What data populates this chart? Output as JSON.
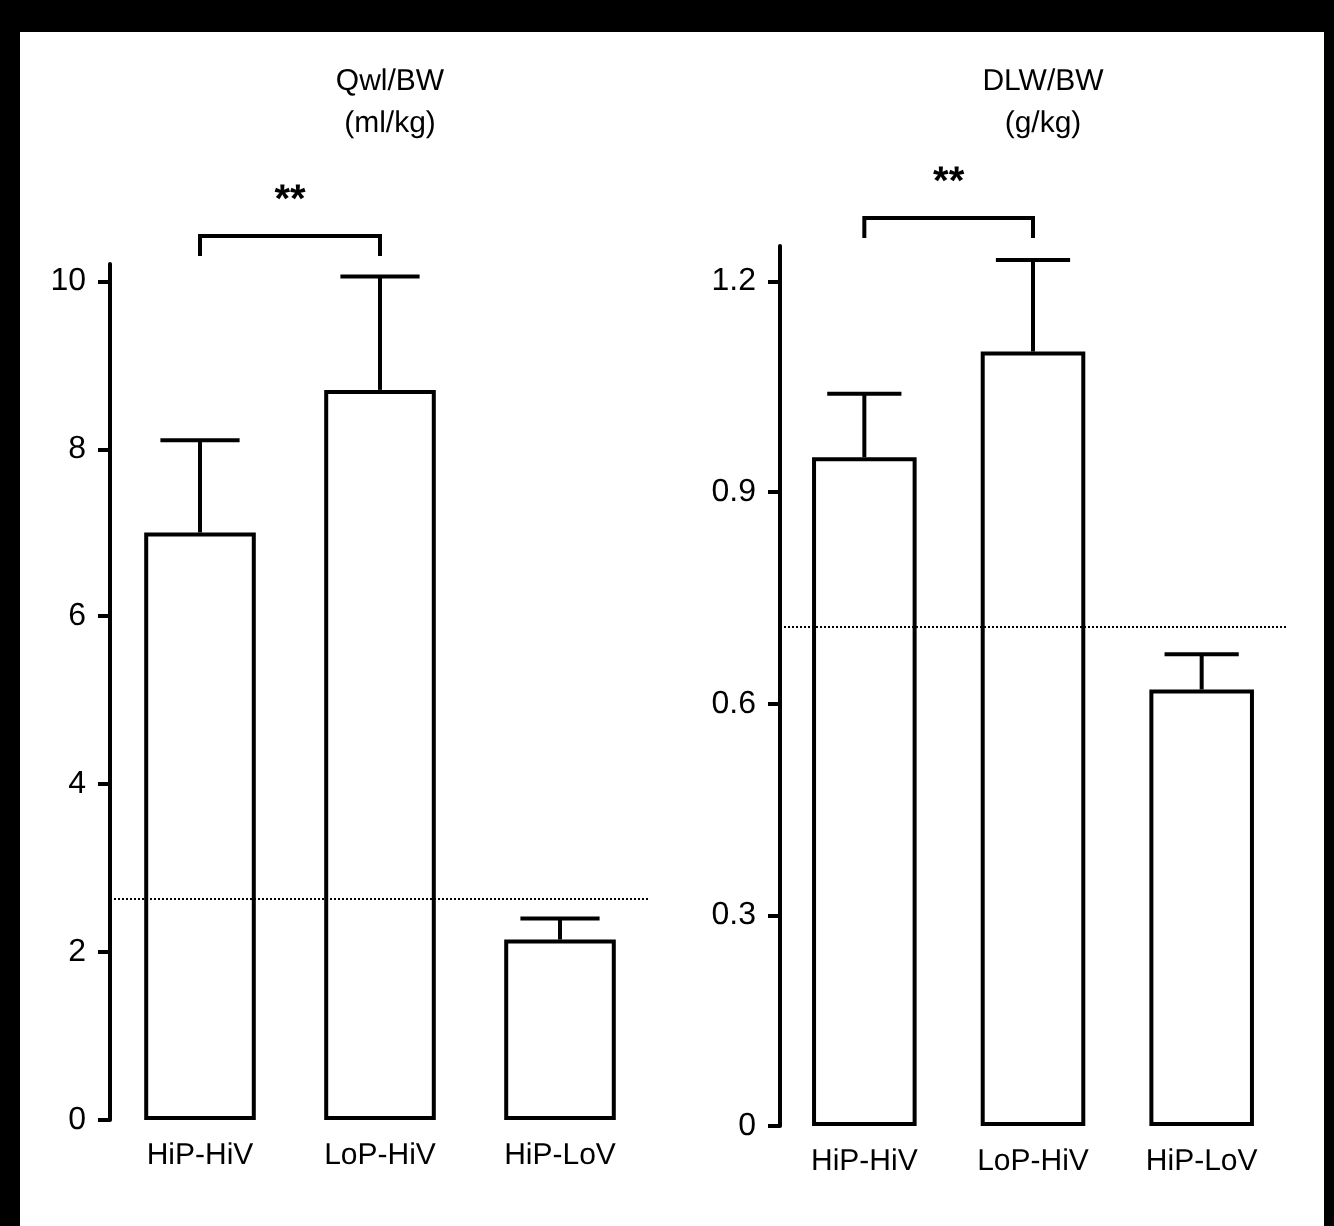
{
  "chart_data": [
    {
      "type": "bar",
      "title": "Qwl/BW",
      "subtitle": "(ml/kg)",
      "categories": [
        "HiP-HiV",
        "LoP-HiV",
        "HiP-LoV"
      ],
      "values": [
        7.0,
        8.7,
        2.15
      ],
      "errors": [
        [
          7.0,
          8.1
        ],
        [
          8.7,
          10.05
        ],
        [
          2.15,
          2.4
        ]
      ],
      "color": "#ffffff",
      "ylim": [
        0,
        10.2
      ],
      "yticks": [
        0,
        2,
        4,
        6,
        8,
        10
      ],
      "grid": false,
      "ref_lines": [
        {
          "axis": "y",
          "value": 2.65,
          "color": "#000000",
          "line_style": "dotted"
        }
      ],
      "annotations": [
        "**"
      ]
    },
    {
      "type": "bar",
      "title": "DLW/BW",
      "subtitle": "(g/kg)",
      "categories": [
        "HiP-HiV",
        "LoP-HiV",
        "HiP-LoV"
      ],
      "values": [
        0.95,
        1.1,
        0.62
      ],
      "errors": [
        [
          0.95,
          1.04
        ],
        [
          1.1,
          1.23
        ],
        [
          0.62,
          0.67
        ]
      ],
      "color": "#ffffff",
      "ylim": [
        0,
        1.25
      ],
      "yticks": [
        0,
        0.3,
        0.6,
        0.9,
        1.2
      ],
      "grid": false,
      "ref_lines": [
        {
          "axis": "y",
          "value": 0.71,
          "color": "#000000",
          "line_style": "dotted"
        }
      ],
      "annotations": [
        "**"
      ]
    }
  ]
}
